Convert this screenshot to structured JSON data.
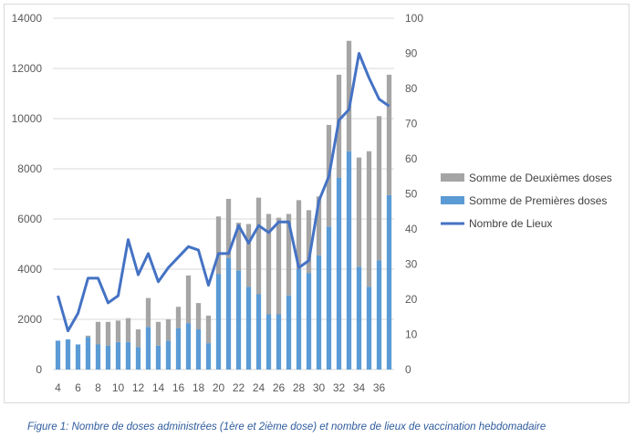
{
  "chart_data": {
    "type": "bar",
    "stacked": true,
    "categories": [
      4,
      5,
      6,
      7,
      8,
      9,
      10,
      11,
      12,
      13,
      14,
      15,
      16,
      17,
      18,
      19,
      20,
      21,
      22,
      23,
      24,
      25,
      26,
      27,
      28,
      29,
      30,
      31,
      32,
      33,
      34,
      35,
      36,
      37
    ],
    "x_tick_labels": [
      "4",
      "6",
      "8",
      "10",
      "12",
      "14",
      "16",
      "18",
      "20",
      "22",
      "24",
      "26",
      "28",
      "30",
      "32",
      "34",
      "36"
    ],
    "series": [
      {
        "name": "Somme de Premières doses",
        "axis": "left",
        "color": "#5b9bd5",
        "values": [
          1150,
          1200,
          1000,
          1300,
          1000,
          950,
          1100,
          1100,
          900,
          1700,
          950,
          1150,
          1650,
          1850,
          1600,
          1050,
          3800,
          4450,
          3950,
          3300,
          3000,
          2200,
          2200,
          2950,
          4000,
          3850,
          4550,
          5700,
          7650,
          8700,
          4100,
          3300,
          4350,
          6950
        ]
      },
      {
        "name": "Somme de Deuxièmes doses",
        "axis": "left",
        "color": "#a5a5a5",
        "values": [
          0,
          0,
          0,
          50,
          900,
          950,
          850,
          950,
          700,
          1150,
          950,
          850,
          850,
          1900,
          1050,
          1100,
          2300,
          2350,
          1900,
          2500,
          3850,
          4000,
          3850,
          3250,
          2750,
          2500,
          2350,
          4050,
          4100,
          4400,
          4350,
          5400,
          5750,
          4800
        ]
      },
      {
        "name": "Nombre de Lieux",
        "type": "line",
        "axis": "right",
        "color": "#4472c4",
        "values": [
          21,
          11,
          16,
          26,
          26,
          19,
          21,
          37,
          27,
          33,
          25,
          29,
          32,
          35,
          34,
          24,
          33,
          33,
          41,
          36,
          41,
          39,
          42,
          42,
          29,
          31,
          48,
          55,
          71,
          74,
          90,
          83,
          77,
          75
        ]
      }
    ],
    "y_left_ticks": [
      "0",
      "2000",
      "4000",
      "6000",
      "8000",
      "10000",
      "12000",
      "14000"
    ],
    "y_right_ticks": [
      "0",
      "10",
      "20",
      "30",
      "40",
      "50",
      "60",
      "70",
      "80",
      "90",
      "100"
    ],
    "ylim_left": [
      0,
      14000
    ],
    "ylim_right": [
      0,
      100
    ],
    "legend_position": "right",
    "legend": [
      "Somme de Deuxièmes doses",
      "Somme de Premières doses",
      "Nombre de Lieux"
    ]
  },
  "caption": "Figure 1: Nombre de doses administrées (1ère et 2ième dose) et nombre de lieux de vaccination hebdomadaire"
}
